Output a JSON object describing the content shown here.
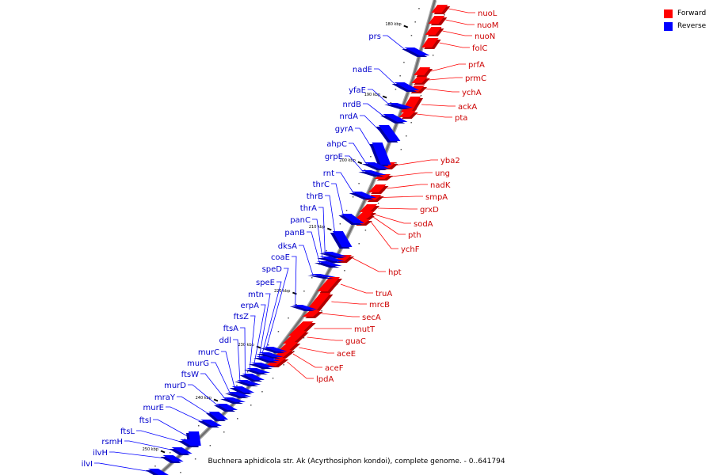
{
  "title": "Buchnera aphidicola str. Ak (Acyrthosiphon kondoi), complete genome. - 0..641794",
  "legend": {
    "forward": {
      "label": "Forward",
      "color": "#ff0000"
    },
    "reverse": {
      "label": "Reverse",
      "color": "#0000ff"
    }
  },
  "ticks": [
    "180 kbp",
    "190 kbp",
    "200 kbp",
    "210 kbp",
    "220 kbp",
    "230 kbp",
    "240 kbp",
    "250 kbp"
  ],
  "forward_genes": [
    "nuoL",
    "nuoM",
    "nuoN",
    "folC",
    "prfA",
    "prmC",
    "ychA",
    "ackA",
    "pta",
    "yba2",
    "ung",
    "nadK",
    "smpA",
    "grxD",
    "sodA",
    "pth",
    "ychF",
    "hpt",
    "truA",
    "mrcB",
    "secA",
    "mutT",
    "guaC",
    "aceE",
    "aceF",
    "lpdA"
  ],
  "reverse_genes": [
    "prs",
    "nadE",
    "yfaE",
    "nrdB",
    "nrdA",
    "gyrA",
    "ahpC",
    "grpE",
    "rnt",
    "thrC",
    "thrB",
    "thrA",
    "panC",
    "panB",
    "dksA",
    "coaE",
    "speD",
    "speE",
    "mtn",
    "erpA",
    "ftsZ",
    "ftsA",
    "ddl",
    "murC",
    "murG",
    "ftsW",
    "murD",
    "mraY",
    "murE",
    "ftsI",
    "ftsL",
    "rsmH",
    "ilvH",
    "ilvI"
  ]
}
